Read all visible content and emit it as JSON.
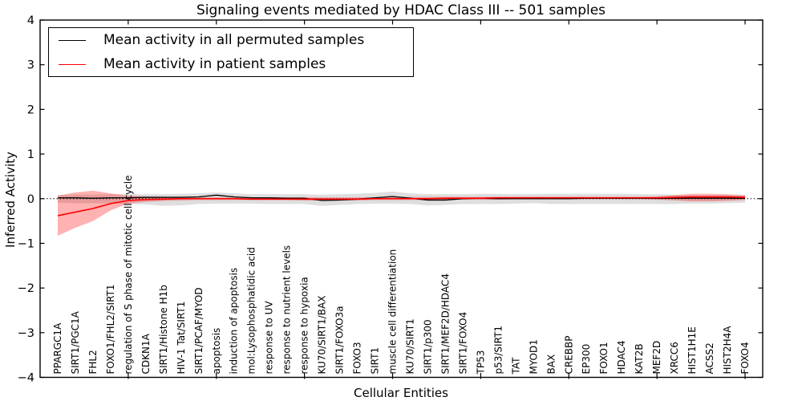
{
  "figure": {
    "title": "Signaling events mediated by HDAC Class III -- 501 samples",
    "xlabel": "Cellular Entities",
    "ylabel": "Inferred Activity",
    "legend": [
      {
        "label": "Mean activity in all permuted samples",
        "color": "#000000"
      },
      {
        "label": "Mean activity in patient samples",
        "color": "#ff0000"
      }
    ]
  },
  "chart_data": {
    "type": "line",
    "title": "Signaling events mediated by HDAC Class III -- 501 samples",
    "xlabel": "Cellular Entities",
    "ylabel": "Inferred Activity",
    "ylim": [
      -4,
      4
    ],
    "yticks": [
      -4,
      -3,
      -2,
      -1,
      0,
      1,
      2,
      3,
      4
    ],
    "xtick_positions": [
      5,
      10,
      15,
      20,
      25,
      30,
      35,
      40
    ],
    "grid": false,
    "zero_line": true,
    "legend_position": "upper left",
    "categories": [
      "PPARGC1A",
      "SIRT1/PGC1A",
      "FHL2",
      "FOXO1/FHL2/SIRT1",
      "regulation of S phase of mitotic cell cycle",
      "CDKN1A",
      "SIRT1/Histone H1b",
      "HIV-1 Tat/SIRT1",
      "SIRT1/PCAF/MYOD",
      "apoptosis",
      "induction of apoptosis",
      "mol:Lysophosphatidic acid",
      "response to UV",
      "response to nutrient levels",
      "response to hypoxia",
      "KU70/SIRT1/BAX",
      "SIRT1/FOXO3a",
      "FOXO3",
      "SIRT1",
      "muscle cell differentiation",
      "KU70/SIRT1",
      "SIRT1/p300",
      "SIRT1/MEF2D/HDAC4",
      "SIRT1/FOXO4",
      "TP53",
      "p53/SIRT1",
      "TAT",
      "MYOD1",
      "BAX",
      "CREBBP",
      "EP300",
      "FOXO1",
      "HDAC4",
      "KAT2B",
      "MEF2D",
      "XRCC6",
      "HIST1H1E",
      "ACSS2",
      "HIST2H4A",
      "FOXO4"
    ],
    "series": [
      {
        "name": "Mean activity in all permuted samples",
        "color": "#000000",
        "band_color": "#000000",
        "band_opacity": 0.13,
        "values": [
          0.02,
          0.02,
          0.01,
          0.02,
          0.02,
          0.03,
          0.03,
          0.03,
          0.04,
          0.08,
          0.04,
          0.02,
          0.02,
          0.01,
          0.01,
          -0.04,
          -0.03,
          -0.01,
          0.02,
          0.05,
          0.01,
          -0.03,
          -0.03,
          0.0,
          0.01,
          0.0,
          0.0,
          0.0,
          0.0,
          0.0,
          0.01,
          0.01,
          0.01,
          0.01,
          0.01,
          0.01,
          0.01,
          0.01,
          0.01,
          0.01
        ],
        "band_lower": [
          -0.09,
          -0.1,
          -0.1,
          -0.11,
          -0.12,
          -0.13,
          -0.16,
          -0.15,
          -0.12,
          -0.11,
          -0.11,
          -0.11,
          -0.12,
          -0.12,
          -0.12,
          -0.16,
          -0.14,
          -0.12,
          -0.11,
          -0.11,
          -0.12,
          -0.15,
          -0.14,
          -0.12,
          -0.12,
          -0.12,
          -0.11,
          -0.1,
          -0.12,
          -0.12,
          -0.12,
          -0.12,
          -0.12,
          -0.12,
          -0.12,
          -0.12,
          -0.11,
          -0.11,
          -0.1,
          -0.09
        ],
        "band_upper": [
          0.08,
          0.09,
          0.09,
          0.1,
          0.1,
          0.1,
          0.1,
          0.11,
          0.12,
          0.14,
          0.12,
          0.1,
          0.1,
          0.1,
          0.1,
          0.09,
          0.1,
          0.11,
          0.13,
          0.16,
          0.12,
          0.1,
          0.1,
          0.1,
          0.11,
          0.11,
          0.1,
          0.1,
          0.11,
          0.11,
          0.11,
          0.11,
          0.11,
          0.1,
          0.1,
          0.09,
          0.08,
          0.08,
          0.08,
          0.07
        ]
      },
      {
        "name": "Mean activity in patient samples",
        "color": "#ff0000",
        "band_color": "#ff0000",
        "band_opacity": 0.3,
        "values": [
          -0.38,
          -0.3,
          -0.22,
          -0.11,
          -0.04,
          -0.02,
          -0.01,
          0.0,
          0.0,
          0.0,
          0.0,
          -0.01,
          -0.01,
          -0.01,
          -0.01,
          -0.01,
          -0.01,
          -0.01,
          0.0,
          0.0,
          0.0,
          0.0,
          0.01,
          0.01,
          0.01,
          0.02,
          0.02,
          0.02,
          0.02,
          0.02,
          0.02,
          0.02,
          0.02,
          0.02,
          0.02,
          0.03,
          0.04,
          0.04,
          0.04,
          0.03
        ],
        "band_lower": [
          -0.83,
          -0.65,
          -0.5,
          -0.26,
          -0.11,
          -0.07,
          -0.05,
          -0.04,
          -0.03,
          -0.03,
          -0.03,
          -0.03,
          -0.03,
          -0.03,
          -0.04,
          -0.04,
          -0.04,
          -0.04,
          -0.03,
          -0.03,
          -0.03,
          -0.03,
          -0.03,
          -0.02,
          -0.02,
          -0.02,
          -0.01,
          -0.01,
          -0.01,
          -0.01,
          -0.01,
          -0.01,
          -0.01,
          -0.01,
          -0.02,
          -0.04,
          -0.06,
          -0.06,
          -0.05,
          -0.03
        ],
        "band_upper": [
          0.07,
          0.14,
          0.18,
          0.12,
          0.07,
          0.05,
          0.04,
          0.04,
          0.03,
          0.03,
          0.03,
          0.03,
          0.03,
          0.03,
          0.03,
          0.03,
          0.03,
          0.03,
          0.03,
          0.04,
          0.04,
          0.04,
          0.04,
          0.04,
          0.04,
          0.04,
          0.04,
          0.04,
          0.04,
          0.04,
          0.04,
          0.04,
          0.04,
          0.04,
          0.05,
          0.08,
          0.11,
          0.11,
          0.1,
          0.08
        ]
      }
    ]
  }
}
